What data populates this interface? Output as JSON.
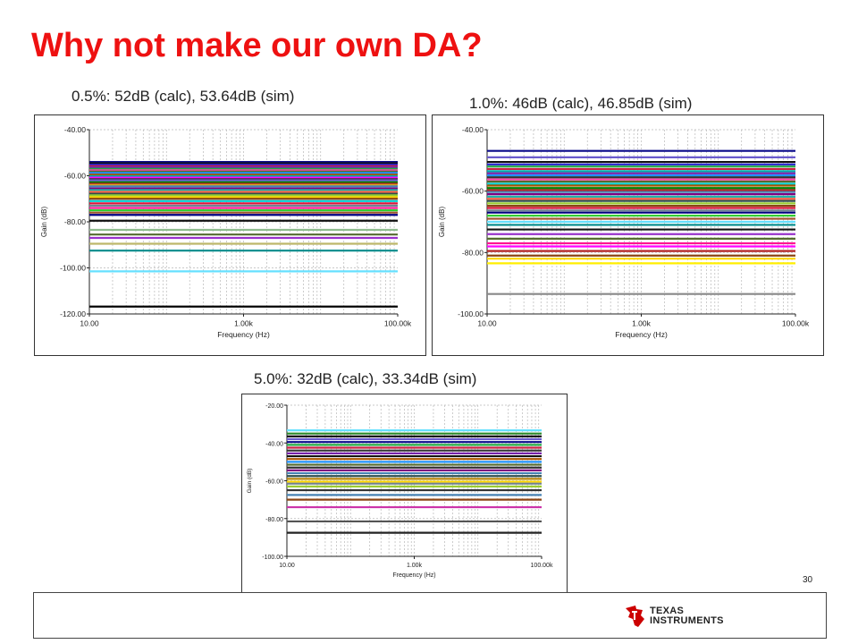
{
  "slide": {
    "title": "Why not make our own DA?",
    "page_number": "30",
    "brand_line1": "Texas",
    "brand_line2": "Instruments",
    "brand_color": "#cc0000",
    "title_color": "#ee1111"
  },
  "chart_data": [
    {
      "type": "line",
      "caption": "0.5%: 52dB (calc), 53.64dB (sim)",
      "xlabel": "Frequency (Hz)",
      "ylabel": "Gain (dB)",
      "x_scale": "log",
      "xlim": [
        10,
        100000
      ],
      "ylim": [
        -120,
        -40
      ],
      "x_ticks": [
        "10.00",
        "1.00k",
        "100.00k"
      ],
      "y_ticks": [
        "-40.00",
        "-60.00",
        "-80.00",
        "-100.00",
        "-120.00"
      ],
      "y_tick_values": [
        -40,
        -60,
        -80,
        -100,
        -120
      ],
      "grid": true,
      "series_gain_db": [
        -54.0,
        -54.6,
        -55.2,
        -55.8,
        -56.3,
        -57.0,
        -57.6,
        -58.2,
        -58.8,
        -59.5,
        -60.2,
        -60.8,
        -61.5,
        -62.0,
        -62.8,
        -63.5,
        -64.0,
        -64.6,
        -65.5,
        -66.2,
        -67.0,
        -67.8,
        -68.5,
        -69.3,
        -70.0,
        -71.0,
        -72.0,
        -73.0,
        -74.0,
        -75.0,
        -76.0,
        -77.0,
        -79.5,
        -83.5,
        -85.5,
        -87.0,
        -89.5,
        -92.5,
        -101.5,
        -116.8
      ],
      "series_colors": [
        "#0a0a8a",
        "#111111",
        "#2222cc",
        "#cc2244",
        "#7722aa",
        "#22aa44",
        "#ff44aa",
        "#556b2f",
        "#1e90ff",
        "#aa5500",
        "#00aaaa",
        "#ff00ff",
        "#333333",
        "#6a5acd",
        "#008000",
        "#b22222",
        "#daa520",
        "#4682b4",
        "#800080",
        "#20b2aa",
        "#ff6347",
        "#2f4f4f",
        "#9acd32",
        "#ffd700",
        "#8b4513",
        "#00ced1",
        "#dc143c",
        "#708090",
        "#ff1493",
        "#32cd32",
        "#a0522d",
        "#000080",
        "#111111",
        "#8fbc8f",
        "#556b2f",
        "#9932cc",
        "#bdb76b",
        "#008b8b",
        "#66e0ff",
        "#000000"
      ]
    },
    {
      "type": "line",
      "caption": "1.0%: 46dB (calc), 46.85dB (sim)",
      "xlabel": "Frequency (Hz)",
      "ylabel": "Gain (dB)",
      "x_scale": "log",
      "xlim": [
        10,
        100000
      ],
      "ylim": [
        -100,
        -40
      ],
      "x_ticks": [
        "10.00",
        "1.00k",
        "100.00k"
      ],
      "y_ticks": [
        "-40.00",
        "-60.00",
        "-80.00",
        "-100.00"
      ],
      "y_tick_values": [
        -40,
        -60,
        -80,
        -100
      ],
      "grid": true,
      "series_gain_db": [
        -46.9,
        -49.0,
        -50.5,
        -51.3,
        -52.0,
        -52.8,
        -53.5,
        -54.2,
        -54.9,
        -55.5,
        -56.2,
        -56.9,
        -57.6,
        -58.2,
        -59.0,
        -59.7,
        -60.3,
        -61.0,
        -61.8,
        -62.5,
        -63.2,
        -64.0,
        -64.8,
        -65.5,
        -66.3,
        -67.0,
        -68.0,
        -69.0,
        -70.0,
        -71.0,
        -72.5,
        -74.0,
        -75.5,
        -77.0,
        -78.0,
        -79.5,
        -81.0,
        -82.0,
        -83.5,
        -93.5
      ],
      "series_colors": [
        "#0a0a8a",
        "#6a5acd",
        "#111111",
        "#2222cc",
        "#22aa44",
        "#cc2244",
        "#00aaaa",
        "#7722aa",
        "#1e90ff",
        "#333333",
        "#ff44aa",
        "#556b2f",
        "#00ced1",
        "#aa5500",
        "#008000",
        "#b22222",
        "#4682b4",
        "#800080",
        "#20b2aa",
        "#ff6347",
        "#2f4f4f",
        "#9acd32",
        "#8b4513",
        "#dc143c",
        "#708090",
        "#000080",
        "#32cd32",
        "#a0522d",
        "#66e0ff",
        "#008b8b",
        "#111111",
        "#9932cc",
        "#556b2f",
        "#ff1493",
        "#ff00ff",
        "#b22222",
        "#8b4513",
        "#ffd700",
        "#ffee00",
        "#888888"
      ]
    },
    {
      "type": "line",
      "caption": "5.0%: 32dB (calc), 33.34dB (sim)",
      "xlabel": "Frequency (Hz)",
      "ylabel": "Gain (dB)",
      "x_scale": "log",
      "xlim": [
        10,
        100000
      ],
      "ylim": [
        -100,
        -20
      ],
      "x_ticks": [
        "10.00",
        "1.00k",
        "100.00k"
      ],
      "y_ticks": [
        "-20.00",
        "-40.00",
        "-60.00",
        "-80.00",
        "-100.00"
      ],
      "y_tick_values": [
        -20,
        -40,
        -60,
        -80,
        -100
      ],
      "grid": true,
      "series_gain_db": [
        -33.3,
        -35.0,
        -36.5,
        -38.0,
        -39.5,
        -41.0,
        -42.5,
        -44.0,
        -45.5,
        -47.0,
        -48.5,
        -50.0,
        -51.5,
        -53.0,
        -54.5,
        -56.0,
        -57.5,
        -59.0,
        -60.5,
        -61.5,
        -63.0,
        -65.0,
        -67.5,
        -70.0,
        -74.0,
        -81.5,
        -87.5
      ],
      "series_colors": [
        "#66e0ff",
        "#2a8a2a",
        "#111111",
        "#6a5acd",
        "#0a0a8a",
        "#22aa44",
        "#cc2244",
        "#333333",
        "#7722aa",
        "#111111",
        "#aa5500",
        "#1e90ff",
        "#556b2f",
        "#333333",
        "#800080",
        "#4682b4",
        "#2f4f4f",
        "#b8860b",
        "#ffd700",
        "#708090",
        "#9acd32",
        "#333333",
        "#4682b4",
        "#8b4513",
        "#cc33aa",
        "#555555",
        "#222222"
      ]
    }
  ]
}
